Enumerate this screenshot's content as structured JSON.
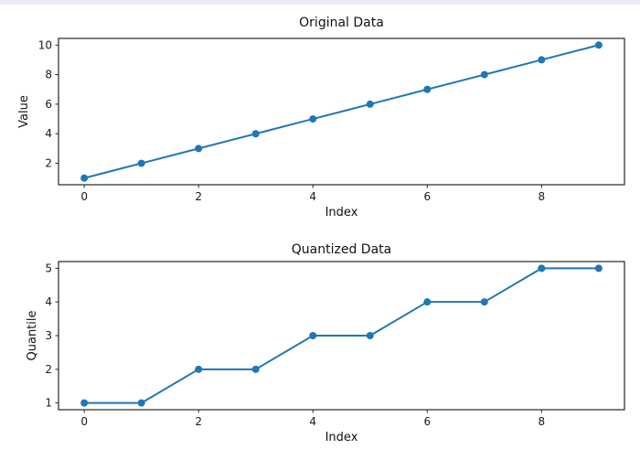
{
  "page": {
    "background": "#ffffff",
    "top_strip_color": "#e8ecf7",
    "axis_color": "#262626",
    "accent_color": "#1f77b4"
  },
  "chart_data": [
    {
      "type": "line",
      "title": "Original Data",
      "xlabel": "Index",
      "ylabel": "Value",
      "x": [
        0,
        1,
        2,
        3,
        4,
        5,
        6,
        7,
        8,
        9
      ],
      "y": [
        1,
        2,
        3,
        4,
        5,
        6,
        7,
        8,
        9,
        10
      ],
      "xticks": [
        0,
        2,
        4,
        6,
        8
      ],
      "yticks": [
        2,
        4,
        6,
        8,
        10
      ],
      "xlim": [
        -0.45,
        9.45
      ],
      "ylim": [
        0.55,
        10.45
      ],
      "line_color": "#1f77b4",
      "marker": "circle",
      "grid": false,
      "legend": null
    },
    {
      "type": "line",
      "title": "Quantized Data",
      "xlabel": "Index",
      "ylabel": "Quantile",
      "x": [
        0,
        1,
        2,
        3,
        4,
        5,
        6,
        7,
        8,
        9
      ],
      "y": [
        1,
        1,
        2,
        2,
        3,
        3,
        4,
        4,
        5,
        5
      ],
      "xticks": [
        0,
        2,
        4,
        6,
        8
      ],
      "yticks": [
        1,
        2,
        3,
        4,
        5
      ],
      "xlim": [
        -0.45,
        9.45
      ],
      "ylim": [
        0.8,
        5.2
      ],
      "line_color": "#1f77b4",
      "marker": "circle",
      "grid": false,
      "legend": null
    }
  ]
}
